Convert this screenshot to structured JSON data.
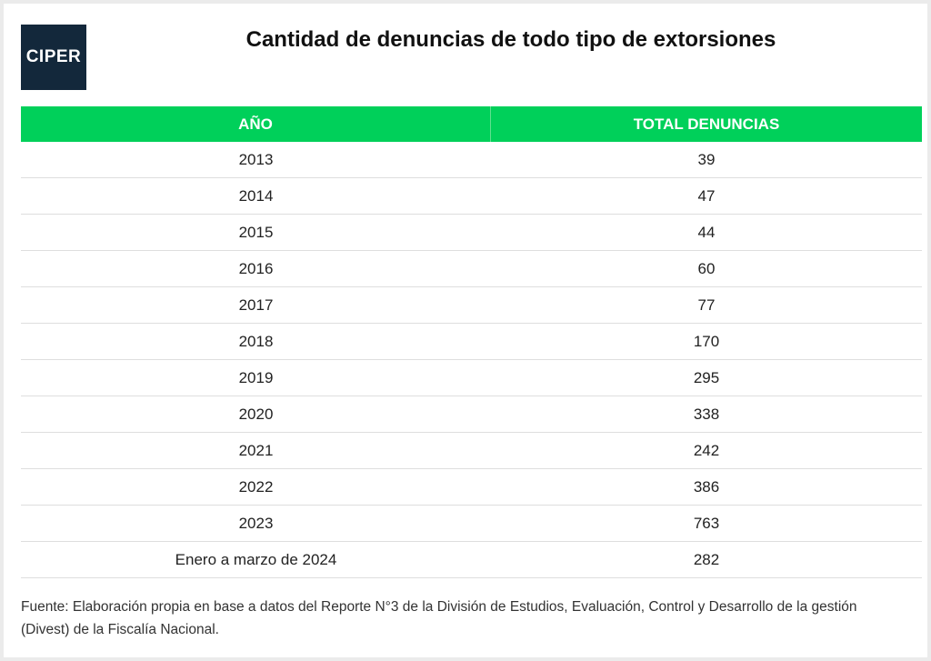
{
  "logo_text": "CIPER",
  "colors": {
    "header_bg": "#00d05a",
    "logo_bg": "#13283b"
  },
  "chart_data": {
    "type": "table",
    "title": "Cantidad de denuncias de todo tipo de extorsiones",
    "columns": [
      "AÑO",
      "TOTAL DENUNCIAS"
    ],
    "rows": [
      [
        "2013",
        "39"
      ],
      [
        "2014",
        "47"
      ],
      [
        "2015",
        "44"
      ],
      [
        "2016",
        "60"
      ],
      [
        "2017",
        "77"
      ],
      [
        "2018",
        "170"
      ],
      [
        "2019",
        "295"
      ],
      [
        "2020",
        "338"
      ],
      [
        "2021",
        "242"
      ],
      [
        "2022",
        "386"
      ],
      [
        "2023",
        "763"
      ],
      [
        "Enero a marzo de 2024",
        "282"
      ]
    ],
    "source": "Fuente: Elaboración propia en base a datos del Reporte N°3 de la División de Estudios, Evaluación, Control y Desarrollo de la gestión (Divest) de la Fiscalía Nacional."
  }
}
